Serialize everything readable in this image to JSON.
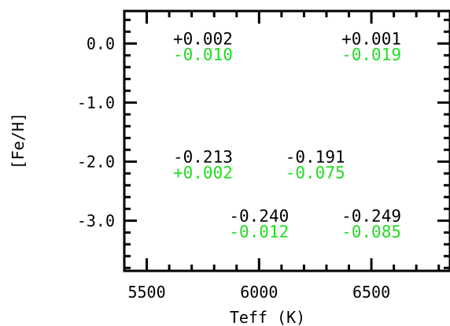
{
  "chart_data": {
    "type": "scatter",
    "xlabel": "Teff (K)",
    "ylabel": "[Fe/H]",
    "xlim": [
      5400,
      6850
    ],
    "ylim": [
      -3.85,
      0.55
    ],
    "x_ticks": [
      5500,
      6000,
      6500
    ],
    "x_tick_labels": [
      "5500",
      "6000",
      "6500"
    ],
    "y_ticks": [
      0.0,
      -1.0,
      -2.0,
      -3.0
    ],
    "y_tick_labels": [
      "0.0",
      "-1.0",
      "-2.0",
      "-3.0"
    ],
    "grid": false,
    "colors": {
      "upper": "#000000",
      "lower": "#22dd22",
      "axis": "#000000"
    },
    "points": [
      {
        "teff": 5750,
        "feh": 0.0,
        "upper": "+0.002",
        "lower": "-0.010"
      },
      {
        "teff": 6500,
        "feh": 0.0,
        "upper": "+0.001",
        "lower": "-0.019"
      },
      {
        "teff": 5750,
        "feh": -2.0,
        "upper": "-0.213",
        "lower": "+0.002"
      },
      {
        "teff": 6250,
        "feh": -2.0,
        "upper": "-0.191",
        "lower": "-0.075"
      },
      {
        "teff": 6000,
        "feh": -3.0,
        "upper": "-0.240",
        "lower": "-0.012"
      },
      {
        "teff": 6500,
        "feh": -3.0,
        "upper": "-0.249",
        "lower": "-0.085"
      }
    ]
  }
}
